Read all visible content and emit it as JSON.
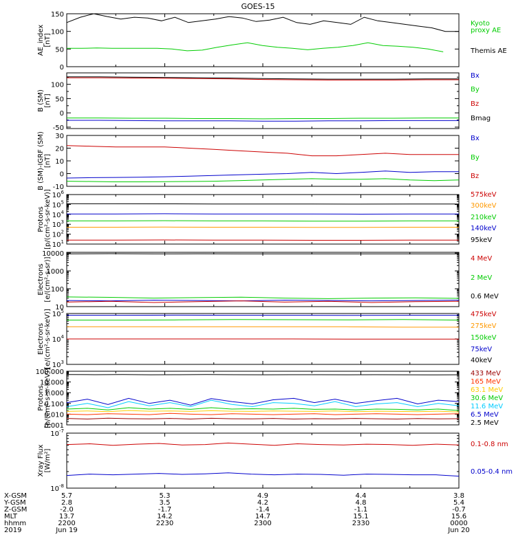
{
  "title": "GOES-15",
  "chart_data": [
    {
      "type": "line",
      "ylabel": [
        "AE_index",
        "[nT]"
      ],
      "ylim": [
        0,
        150
      ],
      "yticks": [
        0,
        50,
        100,
        150
      ],
      "legend": [
        {
          "label": "Kyoto",
          "color": "#00cc00"
        },
        {
          "label": "proxy AE",
          "color": "#00cc00"
        },
        {
          "label": "Themis AE",
          "color": "#000000"
        }
      ],
      "series": [
        {
          "color": "#000000",
          "values": [
            125,
            140,
            150,
            142,
            135,
            140,
            138,
            130,
            140,
            125,
            130,
            135,
            142,
            138,
            128,
            132,
            140,
            125,
            120,
            130,
            125,
            120,
            140,
            130,
            125,
            120,
            115,
            110,
            100,
            100
          ]
        },
        {
          "color": "#00cc00",
          "values": [
            52,
            52,
            53,
            52,
            52,
            52,
            52,
            50,
            45,
            47,
            55,
            62,
            68,
            60,
            55,
            52,
            48,
            52,
            55,
            60,
            68,
            60,
            58,
            55,
            50,
            42
          ]
        }
      ]
    },
    {
      "type": "line",
      "ylabel": [
        "B (SM)",
        "[nT]"
      ],
      "ylim": [
        -55,
        140
      ],
      "yticks": [
        -50,
        0,
        50,
        100
      ],
      "yticks_minor": [
        -25,
        25,
        75,
        125
      ],
      "legend": [
        {
          "label": "Bx",
          "color": "#0000cc"
        },
        {
          "label": "By",
          "color": "#00cc00"
        },
        {
          "label": "Bz",
          "color": "#cc0000"
        },
        {
          "label": "Bmag",
          "color": "#000000"
        }
      ],
      "series": [
        {
          "color": "#000000",
          "values": [
            126,
            126,
            125,
            124,
            123,
            122,
            120,
            119,
            118,
            118,
            118,
            119,
            119
          ]
        },
        {
          "color": "#cc0000",
          "values": [
            123,
            123,
            122,
            121,
            120,
            119,
            117,
            116,
            115,
            115,
            115,
            116,
            116
          ]
        },
        {
          "color": "#0000cc",
          "values": [
            -26,
            -26,
            -27,
            -28,
            -28,
            -28,
            -29,
            -29,
            -28,
            -28,
            -27,
            -27,
            -27
          ]
        },
        {
          "color": "#00cc00",
          "values": [
            -18,
            -18,
            -19,
            -19,
            -20,
            -20,
            -21,
            -20,
            -20,
            -19,
            -19,
            -18,
            -18
          ]
        }
      ]
    },
    {
      "type": "line",
      "ylabel": [
        "B (SM)-IGRF (SM)",
        "[nT]"
      ],
      "ylim": [
        -10,
        30
      ],
      "yticks": [
        -10,
        0,
        10,
        20,
        30
      ],
      "legend": [
        {
          "label": "Bx",
          "color": "#0000cc"
        },
        {
          "label": "By",
          "color": "#00cc00"
        },
        {
          "label": "Bz",
          "color": "#cc0000"
        }
      ],
      "series": [
        {
          "color": "#cc0000",
          "values": [
            22,
            21.5,
            21,
            21,
            21,
            20,
            19,
            18,
            17,
            16,
            14,
            14,
            15,
            16,
            15,
            15,
            15
          ]
        },
        {
          "color": "#0000cc",
          "values": [
            -3.5,
            -3.2,
            -3,
            -2.8,
            -2.5,
            -2,
            -1.5,
            -1,
            -0.5,
            0,
            1,
            0,
            1,
            2,
            1,
            1.5,
            1.5
          ]
        },
        {
          "color": "#00cc00",
          "values": [
            -6,
            -6.2,
            -6.5,
            -6.5,
            -6.4,
            -6.2,
            -6,
            -5.5,
            -5,
            -4.5,
            -4,
            -4.5,
            -4.5,
            -4,
            -5,
            -5.5,
            -5
          ]
        }
      ]
    },
    {
      "type": "line",
      "yscale": "log",
      "ylabel": [
        "Protons",
        "[p/(cm²-s-sr-keV)]"
      ],
      "ylim": [
        10,
        1000000
      ],
      "yticks": [
        {
          "base": "10",
          "exp": "1"
        },
        {
          "base": "10",
          "exp": "2"
        },
        {
          "base": "10",
          "exp": "3"
        },
        {
          "base": "10",
          "exp": "4"
        },
        {
          "base": "10",
          "exp": "5"
        },
        {
          "base": "10",
          "exp": "6"
        }
      ],
      "legend": [
        {
          "label": "575keV",
          "color": "#cc0000"
        },
        {
          "label": "300keV",
          "color": "#ff9900"
        },
        {
          "label": "210keV",
          "color": "#00cc00"
        },
        {
          "label": "140keV",
          "color": "#0000cc"
        },
        {
          "label": "95keV",
          "color": "#000000"
        }
      ],
      "series": [
        {
          "color": "#000000",
          "values": [
            120000,
            118000,
            115000,
            112000,
            110000,
            110000,
            108000,
            110000,
            112000
          ]
        },
        {
          "color": "#0000cc",
          "values": [
            11000,
            11000,
            11500,
            11000,
            11000,
            11000,
            10500,
            11000,
            11000
          ]
        },
        {
          "color": "#00cc00",
          "values": [
            2200,
            2200,
            2300,
            2200,
            2200,
            2100,
            2100,
            2200,
            2200
          ]
        },
        {
          "color": "#ff9900",
          "values": [
            500,
            500,
            520,
            500,
            500,
            490,
            480,
            500,
            500
          ]
        },
        {
          "color": "#cc0000",
          "values": [
            25,
            25,
            26,
            25,
            25,
            24,
            24,
            25,
            25
          ]
        }
      ]
    },
    {
      "type": "line",
      "yscale": "log",
      "ylabel": [
        "Electrons",
        "[e/(cm²-s-sr)]"
      ],
      "ylim": [
        10,
        11000
      ],
      "yticks": [
        10,
        100,
        1000,
        10000
      ],
      "legend": [
        {
          "label": "4 MeV",
          "color": "#cc0000"
        },
        {
          "label": "2 MeV",
          "color": "#00cc00"
        },
        {
          "label": "0.6 MeV",
          "color": "#000000"
        }
      ],
      "series": [
        {
          "color": "#000000",
          "values": [
            9000,
            9200,
            9000,
            9100,
            9000,
            9000,
            9000,
            9000,
            9000,
            9000
          ]
        },
        {
          "color": "#00cc00",
          "values": [
            35,
            33,
            30,
            32,
            34,
            30,
            28,
            30,
            31,
            29
          ]
        },
        {
          "color": "#0000cc",
          "values": [
            22,
            21,
            23,
            22,
            21,
            23,
            22,
            21,
            22,
            23
          ]
        },
        {
          "color": "#cc0000",
          "values": [
            18,
            20,
            17,
            19,
            21,
            18,
            20,
            17,
            19,
            20
          ]
        }
      ]
    },
    {
      "type": "line",
      "yscale": "log",
      "ylabel": [
        "Electrons",
        "[e/(cm²-s-sr-keV)]"
      ],
      "ylim": [
        1000,
        100000
      ],
      "yticks": [
        {
          "base": "10",
          "exp": "3"
        },
        {
          "base": "10",
          "exp": "4"
        },
        {
          "base": "10",
          "exp": "5"
        }
      ],
      "legend": [
        {
          "label": "475keV",
          "color": "#cc0000"
        },
        {
          "label": "275keV",
          "color": "#ff9900"
        },
        {
          "label": "150keV",
          "color": "#00cc00"
        },
        {
          "label": "75keV",
          "color": "#0000cc"
        },
        {
          "label": "40keV",
          "color": "#000000"
        }
      ],
      "series": [
        {
          "color": "#0000cc",
          "values": [
            85000,
            85000,
            86000,
            85000,
            85000,
            84000,
            85000,
            85000
          ]
        },
        {
          "color": "#00cc00",
          "values": [
            55000,
            55000,
            56000,
            58000,
            57000,
            56000,
            58000,
            55000
          ]
        },
        {
          "color": "#ff9900",
          "values": [
            30000,
            30000,
            30000,
            30000,
            30000,
            30000,
            29000,
            29000
          ]
        },
        {
          "color": "#cc0000",
          "values": [
            10000,
            10000,
            10000,
            10000,
            10000,
            9800,
            9800,
            9800
          ]
        }
      ]
    },
    {
      "type": "line",
      "yscale": "log",
      "ylabel": [
        "Protons",
        "[p/(cm²-s-sr-keV)]"
      ],
      "ylim": [
        0.001,
        100
      ],
      "yticks": [
        "0.001",
        "0.010",
        "0.100",
        "1.000",
        "10.000",
        "100.000"
      ],
      "legend": [
        {
          "label": "433 MeV",
          "color": "#990000"
        },
        {
          "label": "165 MeV",
          "color": "#ff3300"
        },
        {
          "label": "63.1 MeV",
          "color": "#ffcc00"
        },
        {
          "label": "30.6 MeV",
          "color": "#00cc00"
        },
        {
          "label": "11.6 MeV",
          "color": "#00ccff"
        },
        {
          "label": "6.5 MeV",
          "color": "#0000cc"
        },
        {
          "label": "2.5 MeV",
          "color": "#000000"
        }
      ],
      "series": [
        {
          "color": "#000000",
          "values": [
            50,
            48,
            49,
            47,
            48,
            49,
            48,
            47,
            48,
            48,
            47,
            48,
            47,
            46,
            47
          ]
        },
        {
          "color": "#0000cc",
          "values": [
            0.12,
            0.25,
            0.08,
            0.3,
            0.1,
            0.2,
            0.07,
            0.28,
            0.15,
            0.09,
            0.22,
            0.3,
            0.12,
            0.25,
            0.1,
            0.18,
            0.3,
            0.09,
            0.2,
            0.15
          ]
        },
        {
          "color": "#00ccff",
          "values": [
            0.05,
            0.1,
            0.04,
            0.15,
            0.06,
            0.12,
            0.05,
            0.2,
            0.08,
            0.05,
            0.12,
            0.1,
            0.06,
            0.15,
            0.05,
            0.09,
            0.12,
            0.05,
            0.1,
            0.06
          ]
        },
        {
          "color": "#00cc00",
          "values": [
            0.03,
            0.035,
            0.025,
            0.04,
            0.03,
            0.035,
            0.028,
            0.04,
            0.03,
            0.032,
            0.03,
            0.035,
            0.028,
            0.03,
            0.025,
            0.03,
            0.028,
            0.025,
            0.03,
            0.022
          ]
        },
        {
          "color": "#ffcc00",
          "values": [
            0.018,
            0.02,
            0.017,
            0.022,
            0.019,
            0.02,
            0.018,
            0.021,
            0.019,
            0.018,
            0.02,
            0.019,
            0.018,
            0.02,
            0.017,
            0.019,
            0.018,
            0.017,
            0.019,
            0.016
          ]
        },
        {
          "color": "#ff3300",
          "values": [
            0.01,
            0.009,
            0.011,
            0.01,
            0.009,
            0.012,
            0.01,
            0.009,
            0.011,
            0.01,
            0.009,
            0.01,
            0.011,
            0.009,
            0.01,
            0.011,
            0.01,
            0.009,
            0.01,
            0.011
          ]
        },
        {
          "color": "#990000",
          "values": [
            0.004,
            0.0035,
            0.0042,
            0.0038,
            0.0036,
            0.004,
            0.0035,
            0.0041,
            0.0037,
            0.0036,
            0.004,
            0.0035,
            0.0038,
            0.0036,
            0.004,
            0.0037,
            0.0035,
            0.0039,
            0.0036,
            0.0038
          ]
        }
      ]
    },
    {
      "type": "line",
      "yscale": "log",
      "ylabel": [
        "Xray Flux",
        "[W/m²]"
      ],
      "ylim": [
        1e-08,
        1e-07
      ],
      "yticks": [
        {
          "base": "10",
          "exp": "-8"
        },
        {
          "base": "10",
          "exp": "-7"
        }
      ],
      "legend": [
        {
          "label": "0.1-0.8 nm",
          "color": "#cc0000"
        },
        {
          "label": "0.05-0.4 nm",
          "color": "#0000cc"
        }
      ],
      "series": [
        {
          "color": "#cc0000",
          "values": [
            6.2e-08,
            6.4e-08,
            6e-08,
            6.3e-08,
            6.5e-08,
            6.1e-08,
            6.2e-08,
            6.6e-08,
            6.3e-08,
            6e-08,
            6.4e-08,
            6.2e-08,
            6.1e-08,
            6.3e-08,
            6.2e-08,
            6e-08,
            6.3e-08,
            6.1e-08
          ]
        },
        {
          "color": "#0000cc",
          "values": [
            1.7e-08,
            1.8e-08,
            1.75e-08,
            1.8e-08,
            1.85e-08,
            1.78e-08,
            1.82e-08,
            1.9e-08,
            1.8e-08,
            1.75e-08,
            1.8e-08,
            1.78e-08,
            1.72e-08,
            1.8e-08,
            1.78e-08,
            1.75e-08,
            1.75e-08,
            1.65e-08
          ]
        }
      ]
    }
  ],
  "x_axis": {
    "row_labels": [
      "X-GSM",
      "Y-GSM",
      "Z-GSM",
      "MLT",
      "hhmm",
      "2019"
    ],
    "columns": [
      [
        "5.7",
        "2.8",
        "-2.0",
        "13.7",
        "2200",
        "Jun 19"
      ],
      [
        "5.3",
        "3.5",
        "-1.7",
        "14.2",
        "2230",
        ""
      ],
      [
        "4.9",
        "4.2",
        "-1.4",
        "14.7",
        "2300",
        ""
      ],
      [
        "4.4",
        "4.8",
        "-1.1",
        "15.1",
        "2330",
        ""
      ],
      [
        "3.8",
        "5.4",
        "-0.7",
        "15.6",
        "0000",
        "Jun 20"
      ]
    ]
  }
}
